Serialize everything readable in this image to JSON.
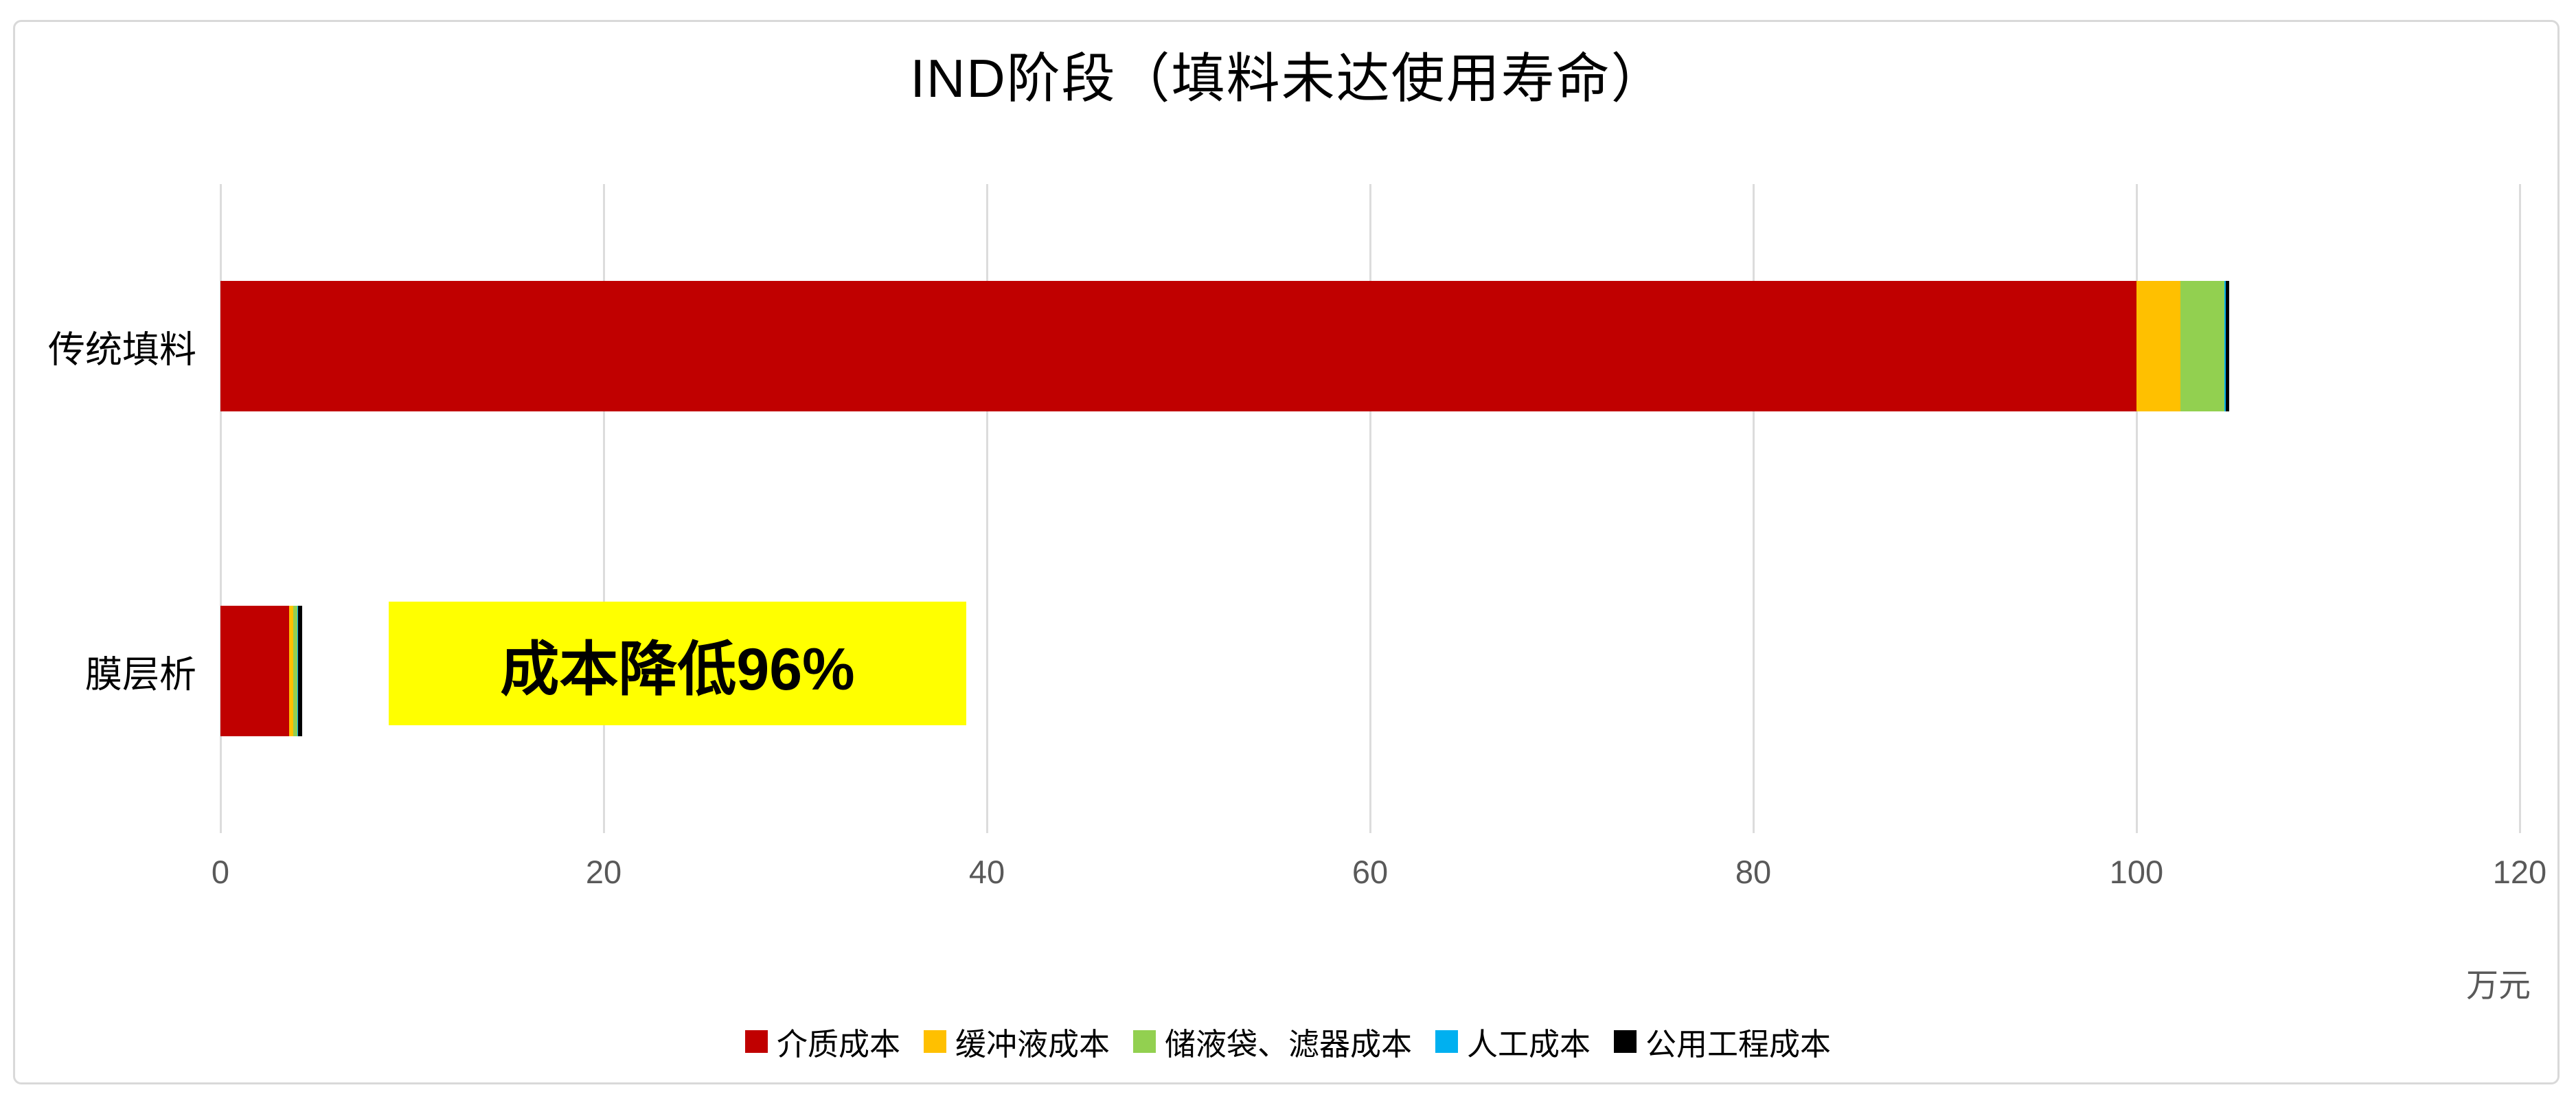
{
  "title": "IND阶段（填料未达使用寿命）",
  "annotation": {
    "text": "成本降低96%",
    "bg_color": "#ffff00"
  },
  "axis_unit_label": "万元",
  "colors": {
    "grid": "#dcdcdc",
    "frame_border": "#d9d9d9",
    "tick_text": "#595959"
  },
  "chart_data": {
    "type": "bar",
    "orientation": "horizontal",
    "stacked": true,
    "title": "IND阶段（填料未达使用寿命）",
    "categories": [
      "传统填料",
      "膜层析"
    ],
    "series": [
      {
        "name": "介质成本",
        "color": "#c00000",
        "values": [
          100.0,
          3.6
        ]
      },
      {
        "name": "缓冲液成本",
        "color": "#ffc000",
        "values": [
          2.3,
          0.2
        ]
      },
      {
        "name": "储液袋、滤器成本",
        "color": "#92d050",
        "values": [
          2.3,
          0.2
        ]
      },
      {
        "name": "人工成本",
        "color": "#00b0f0",
        "values": [
          0.05,
          0.05
        ]
      },
      {
        "name": "公用工程成本",
        "color": "#000000",
        "values": [
          0.2,
          0.2
        ]
      }
    ],
    "category_totals": [
      104.85,
      4.25
    ],
    "xlim": [
      0,
      120
    ],
    "xticks": [
      0,
      20,
      40,
      60,
      80,
      100,
      120
    ],
    "xlabel": "万元",
    "grid": true,
    "legend_position": "bottom",
    "annotation": "成本降低96%"
  }
}
